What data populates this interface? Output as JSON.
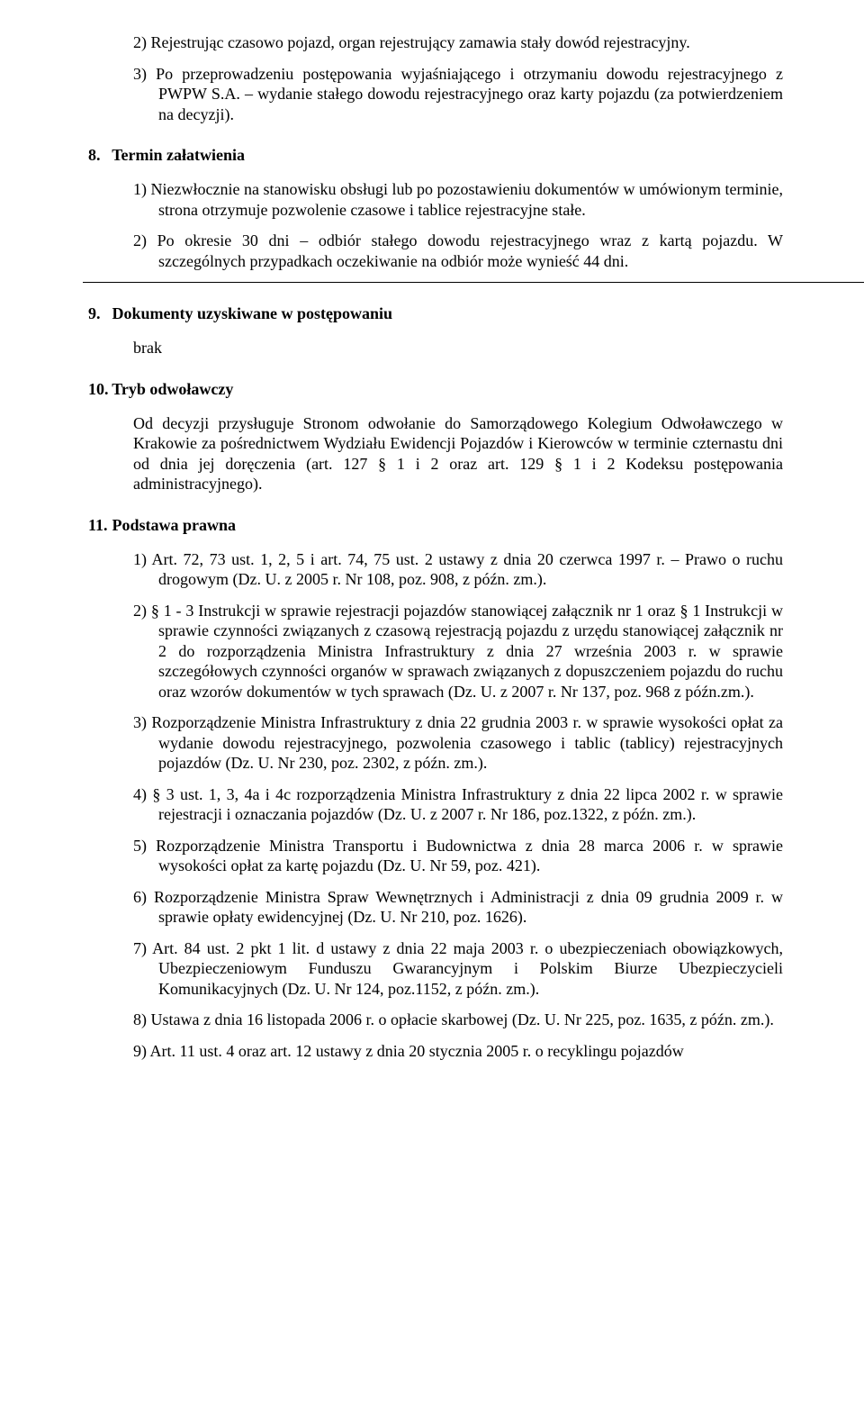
{
  "top_list": {
    "item2": "2) Rejestrując czasowo pojazd, organ rejestrujący zamawia stały dowód rejestracyjny.",
    "item3": "3) Po przeprowadzeniu postępowania wyjaśniającego i otrzymaniu dowodu rejestracyjnego z PWPW S.A. – wydanie stałego dowodu rejestracyjnego oraz karty pojazdu (za potwierdzeniem na decyzji)."
  },
  "section8": {
    "num": "8.",
    "title": "Termin załatwienia",
    "item1": "1) Niezwłocznie na stanowisku obsługi lub po pozostawieniu dokumentów w umówionym terminie, strona otrzymuje pozwolenie czasowe i tablice rejestracyjne stałe.",
    "item2": "2) Po okresie 30 dni – odbiór stałego dowodu rejestracyjnego wraz z kartą pojazdu. W szczególnych przypadkach oczekiwanie na odbiór może wynieść 44 dni."
  },
  "section9": {
    "num": "9.",
    "title": "Dokumenty uzyskiwane w postępowaniu",
    "body": "brak"
  },
  "section10": {
    "num": "10.",
    "title": "Tryb odwoławczy",
    "body": "Od decyzji przysługuje Stronom odwołanie do Samorządowego Kolegium Odwoławczego w Krakowie za pośrednictwem Wydziału Ewidencji Pojazdów i Kierowców w terminie czternastu dni od dnia jej doręczenia (art. 127 § 1 i 2 oraz art. 129 § 1 i 2 Kodeksu postępowania administracyjnego)."
  },
  "section11": {
    "num": "11.",
    "title": "Podstawa prawna",
    "item1": "1) Art. 72, 73 ust. 1, 2, 5 i art. 74, 75 ust. 2 ustawy z dnia 20 czerwca 1997 r. – Prawo o ruchu drogowym (Dz. U. z 2005 r. Nr 108, poz. 908, z późn. zm.).",
    "item2": "2) § 1 - 3 Instrukcji w sprawie rejestracji pojazdów stanowiącej załącznik nr 1 oraz § 1 Instrukcji w sprawie czynności związanych z czasową rejestracją pojazdu z urzędu stanowiącej załącznik nr 2 do rozporządzenia Ministra Infrastruktury z dnia 27 września 2003 r. w sprawie szczegółowych czynności organów w sprawach związanych z dopuszczeniem pojazdu do ruchu oraz wzorów dokumentów w tych sprawach (Dz. U. z 2007 r. Nr 137, poz. 968 z późn.zm.).",
    "item3": "3) Rozporządzenie Ministra Infrastruktury z dnia 22 grudnia 2003 r. w sprawie wysokości opłat za wydanie dowodu rejestracyjnego, pozwolenia czasowego i tablic (tablicy) rejestracyjnych pojazdów (Dz. U. Nr 230, poz. 2302, z późn. zm.).",
    "item4": "4) § 3 ust. 1, 3, 4a i 4c rozporządzenia Ministra Infrastruktury z dnia 22 lipca 2002 r. w sprawie rejestracji i oznaczania pojazdów (Dz. U. z 2007 r. Nr 186, poz.1322, z późn. zm.).",
    "item5": "5) Rozporządzenie Ministra Transportu i Budownictwa z dnia 28 marca 2006 r. w sprawie wysokości opłat za kartę pojazdu (Dz. U. Nr 59, poz. 421).",
    "item6": "6) Rozporządzenie Ministra Spraw Wewnętrznych i Administracji z dnia 09 grudnia 2009 r. w sprawie opłaty ewidencyjnej (Dz. U. Nr 210, poz. 1626).",
    "item7": "7) Art. 84 ust. 2 pkt 1 lit. d ustawy z dnia 22 maja 2003 r. o ubezpieczeniach obowiązkowych, Ubezpieczeniowym Funduszu Gwarancyjnym i Polskim Biurze Ubezpieczycieli Komunikacyjnych (Dz. U. Nr 124, poz.1152, z późn. zm.).",
    "item8": "8) Ustawa z dnia 16 listopada 2006 r. o opłacie skarbowej (Dz. U. Nr 225, poz. 1635, z późn. zm.).",
    "item9": "9) Art. 11 ust. 4 oraz art. 12 ustawy z dnia 20 stycznia 2005 r. o recyklingu pojazdów"
  }
}
